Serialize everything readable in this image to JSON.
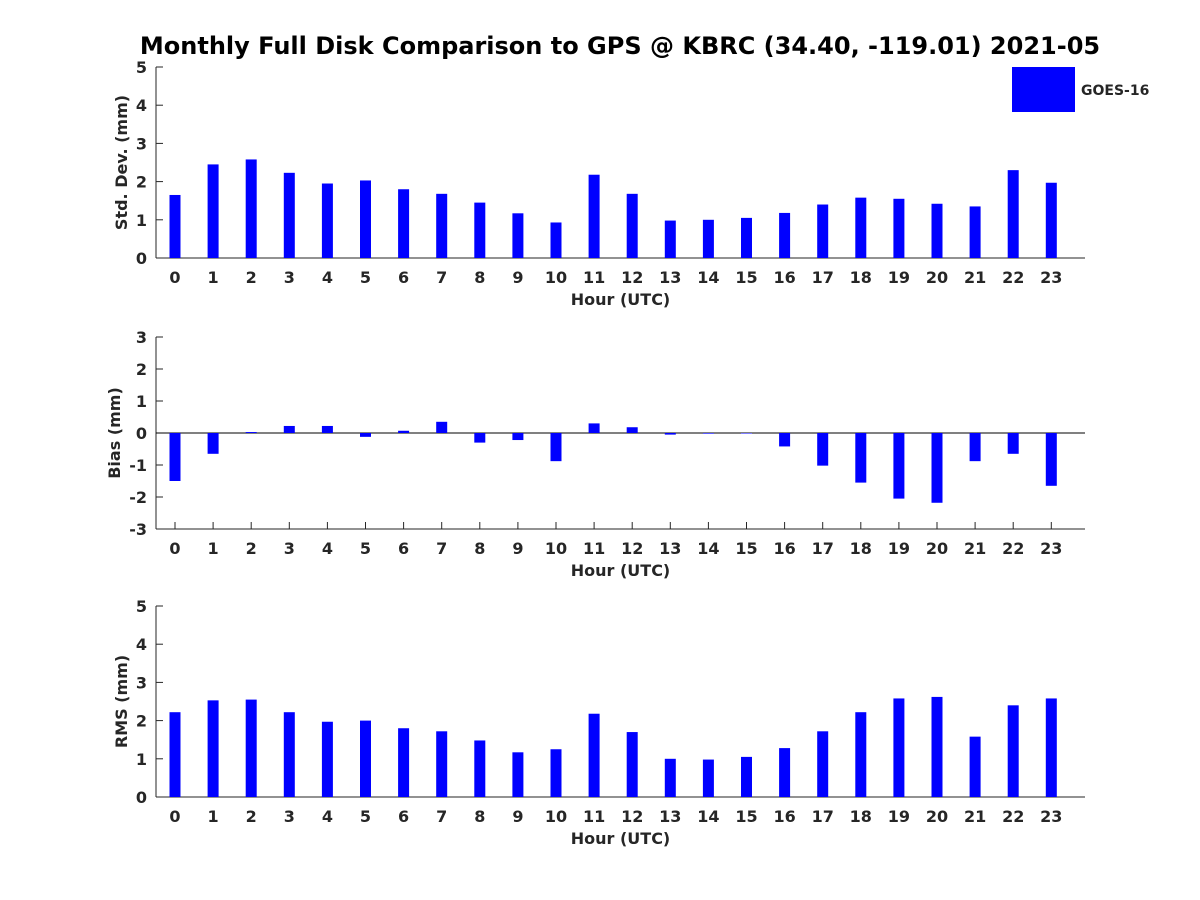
{
  "title": "Monthly Full Disk Comparison to GPS @ KBRC (34.40, -119.01) 2021-05",
  "legend": {
    "label": "GOES-16",
    "color": "#0000ff"
  },
  "chart_data": [
    {
      "type": "bar",
      "title": "Monthly Full Disk Comparison to GPS @ KBRC (34.40, -119.01) 2021-05",
      "xlabel": "Hour (UTC)",
      "ylabel": "Std. Dev. (mm)",
      "ylim": [
        0,
        5
      ],
      "yticks": [
        0,
        1,
        2,
        3,
        4,
        5
      ],
      "categories": [
        "0",
        "1",
        "2",
        "3",
        "4",
        "5",
        "6",
        "7",
        "8",
        "9",
        "10",
        "11",
        "12",
        "13",
        "14",
        "15",
        "16",
        "17",
        "18",
        "19",
        "20",
        "21",
        "22",
        "23"
      ],
      "series": [
        {
          "name": "GOES-16",
          "color": "#0000ff",
          "values": [
            1.65,
            2.45,
            2.58,
            2.23,
            1.95,
            2.03,
            1.8,
            1.68,
            1.45,
            1.17,
            0.93,
            2.18,
            1.68,
            0.98,
            1.0,
            1.05,
            1.18,
            1.4,
            1.58,
            1.55,
            1.42,
            1.35,
            2.3,
            1.97
          ]
        }
      ],
      "legend": "top-right"
    },
    {
      "type": "bar",
      "xlabel": "Hour (UTC)",
      "ylabel": "Bias (mm)",
      "ylim": [
        -3,
        3
      ],
      "yticks": [
        -3,
        -2,
        -1,
        0,
        1,
        2,
        3
      ],
      "categories": [
        "0",
        "1",
        "2",
        "3",
        "4",
        "5",
        "6",
        "7",
        "8",
        "9",
        "10",
        "11",
        "12",
        "13",
        "14",
        "15",
        "16",
        "17",
        "18",
        "19",
        "20",
        "21",
        "22",
        "23"
      ],
      "series": [
        {
          "name": "GOES-16",
          "color": "#0000ff",
          "values": [
            -1.5,
            -0.65,
            0.03,
            0.22,
            0.22,
            -0.12,
            0.07,
            0.35,
            -0.3,
            -0.22,
            -0.88,
            0.3,
            0.18,
            -0.05,
            -0.02,
            0.0,
            -0.42,
            -1.02,
            -1.55,
            -2.05,
            -2.18,
            -0.88,
            -0.65,
            -1.65
          ]
        }
      ]
    },
    {
      "type": "bar",
      "xlabel": "Hour (UTC)",
      "ylabel": "RMS (mm)",
      "ylim": [
        0,
        5
      ],
      "yticks": [
        0,
        1,
        2,
        3,
        4,
        5
      ],
      "categories": [
        "0",
        "1",
        "2",
        "3",
        "4",
        "5",
        "6",
        "7",
        "8",
        "9",
        "10",
        "11",
        "12",
        "13",
        "14",
        "15",
        "16",
        "17",
        "18",
        "19",
        "20",
        "21",
        "22",
        "23"
      ],
      "series": [
        {
          "name": "GOES-16",
          "color": "#0000ff",
          "values": [
            2.22,
            2.53,
            2.55,
            2.22,
            1.97,
            2.0,
            1.8,
            1.72,
            1.48,
            1.17,
            1.25,
            2.18,
            1.7,
            1.0,
            0.98,
            1.05,
            1.28,
            1.72,
            2.22,
            2.58,
            2.62,
            1.58,
            2.4,
            2.58
          ]
        }
      ]
    }
  ]
}
